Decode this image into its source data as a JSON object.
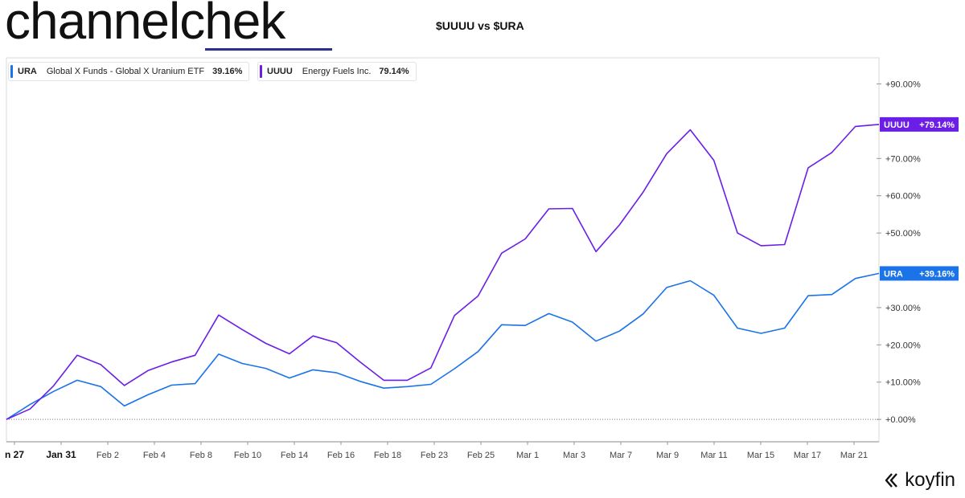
{
  "brand": {
    "part1": "channel",
    "part2": "chek"
  },
  "title": "$UUUU vs $URA",
  "legend": [
    {
      "ticker": "URA",
      "name": "Global X Funds - Global X Uranium ETF",
      "pct": "39.16%",
      "color": "#1a73e8"
    },
    {
      "ticker": "UUUU",
      "name": "Energy Fuels Inc.",
      "pct": "79.14%",
      "color": "#6b1ee6"
    }
  ],
  "watermark": "koyfin",
  "chart_data": {
    "type": "line",
    "x_tick_labels": [
      "n 27",
      "Jan 31",
      "Feb 2",
      "Feb 4",
      "Feb 8",
      "Feb 10",
      "Feb 14",
      "Feb 16",
      "Feb 18",
      "Feb 23",
      "Feb 25",
      "Mar 1",
      "Mar 3",
      "Mar 7",
      "Mar 9",
      "Mar 11",
      "Mar 15",
      "Mar 17",
      "Mar 21"
    ],
    "y_ticks": [
      0,
      10,
      20,
      30,
      50,
      60,
      70,
      90
    ],
    "y_tick_labels": [
      "+0.00%",
      "+10.00%",
      "+20.00%",
      "+30.00%",
      "+50.00%",
      "+60.00%",
      "+70.00%",
      "+90.00%"
    ],
    "ylim": [
      -6,
      97
    ],
    "series": [
      {
        "name": "URA",
        "color": "#1a73e8",
        "end_label": "+39.16%",
        "values": [
          0,
          4,
          7.5,
          10.5,
          8.8,
          3.6,
          6.6,
          9.2,
          9.6,
          17.5,
          15,
          13.7,
          11.1,
          13.3,
          12.5,
          10.2,
          8.4,
          8.8,
          9.4,
          13.6,
          18.2,
          25.4,
          25.2,
          28.4,
          26.1,
          21,
          23.7,
          28.3,
          35.4,
          37.2,
          33.3,
          24.5,
          23.1,
          24.5,
          33.2,
          33.5,
          37.8,
          39.16
        ]
      },
      {
        "name": "UUUU",
        "color": "#6b1ee6",
        "end_label": "+79.14%",
        "values": [
          0,
          2.8,
          9,
          17.2,
          14.7,
          9.1,
          13.1,
          15.4,
          17.2,
          28,
          24.1,
          20.4,
          17.6,
          22.4,
          20.6,
          15.4,
          10.5,
          10.5,
          13.8,
          27.9,
          33.1,
          44.6,
          48.4,
          56.5,
          56.6,
          45,
          52.2,
          61,
          71.3,
          77.7,
          69.5,
          50,
          46.6,
          46.9,
          67.5,
          71.6,
          78.6,
          79.14
        ]
      }
    ]
  }
}
